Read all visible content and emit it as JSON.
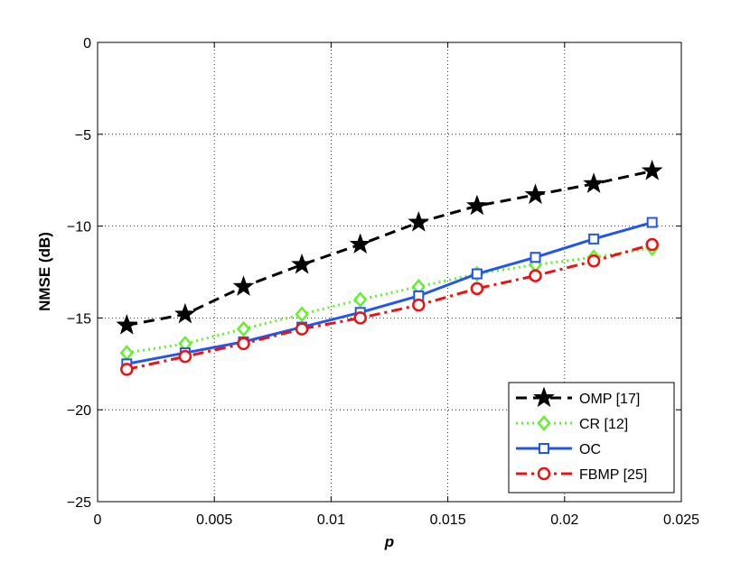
{
  "chart_data": {
    "type": "line",
    "xlabel": "p",
    "ylabel": "NMSE (dB)",
    "xlim": [
      0,
      0.025
    ],
    "ylim": [
      -25,
      0
    ],
    "xticks": [
      0,
      0.005,
      0.01,
      0.015,
      0.02,
      0.025
    ],
    "xtick_labels": [
      "0",
      "0.005",
      "0.01",
      "0.015",
      "0.02",
      "0.025"
    ],
    "yticks": [
      -25,
      -20,
      -15,
      -10,
      -5,
      0
    ],
    "ytick_labels": [
      "−25",
      "−20",
      "−15",
      "−10",
      "−5",
      "0"
    ],
    "grid": true,
    "legend_position": "bottom-right",
    "x": [
      0.00125,
      0.00375,
      0.00625,
      0.00875,
      0.01125,
      0.01375,
      0.01625,
      0.01875,
      0.02125,
      0.02375
    ],
    "series": [
      {
        "name": "OMP [17]",
        "values": [
          -15.4,
          -14.8,
          -13.3,
          -12.1,
          -11.0,
          -9.8,
          -8.9,
          -8.3,
          -7.7,
          -7.0
        ],
        "color": "#000000",
        "marker": "star",
        "dash": "12,7"
      },
      {
        "name": "CR [12]",
        "values": [
          -16.9,
          -16.4,
          -15.6,
          -14.8,
          -14.0,
          -13.3,
          -12.6,
          -12.1,
          -11.7,
          -11.2
        ],
        "color": "#66ee33",
        "marker": "diamond",
        "dash": "2,4"
      },
      {
        "name": "OC",
        "values": [
          -17.5,
          -16.9,
          -16.3,
          -15.5,
          -14.7,
          -13.8,
          -12.6,
          -11.7,
          -10.7,
          -9.8
        ],
        "color": "#2255ee",
        "marker": "square",
        "dash": ""
      },
      {
        "name": "FBMP [25]",
        "values": [
          -17.8,
          -17.1,
          -16.4,
          -15.6,
          -15.0,
          -14.3,
          -13.4,
          -12.7,
          -11.9,
          -11.0
        ],
        "color": "#ee1111",
        "marker": "circle",
        "dash": "12,5,3,5"
      }
    ]
  }
}
